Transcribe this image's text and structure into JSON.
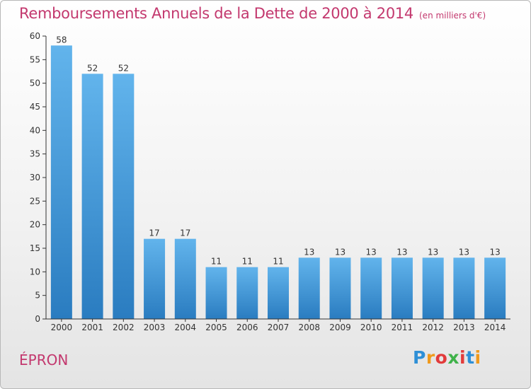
{
  "chart_data": {
    "type": "bar",
    "title": "Remboursements Annuels de la Dette de 2000 à 2014",
    "subtitle": "(en milliers d'€)",
    "categories": [
      "2000",
      "2001",
      "2002",
      "2003",
      "2004",
      "2005",
      "2006",
      "2007",
      "2008",
      "2009",
      "2010",
      "2011",
      "2012",
      "2013",
      "2014"
    ],
    "values": [
      58,
      52,
      52,
      17,
      17,
      11,
      11,
      11,
      13,
      13,
      13,
      13,
      13,
      13,
      13
    ],
    "ylim": [
      0,
      60
    ],
    "yticks": [
      0,
      5,
      10,
      15,
      20,
      25,
      30,
      35,
      40,
      45,
      50,
      55,
      60
    ],
    "grid": false,
    "bar_color_top": "#62b4ec",
    "bar_color_bottom": "#2a7cc0"
  },
  "commune": "ÉPRON",
  "logo": {
    "letters": [
      "P",
      "r",
      "o",
      "x",
      "i",
      "t",
      "i"
    ],
    "colors": [
      "#2e8fd6",
      "#f09a1c",
      "#e23b3b",
      "#3fb24a",
      "#e23b3b",
      "#2e8fd6",
      "#f09a1c"
    ]
  }
}
